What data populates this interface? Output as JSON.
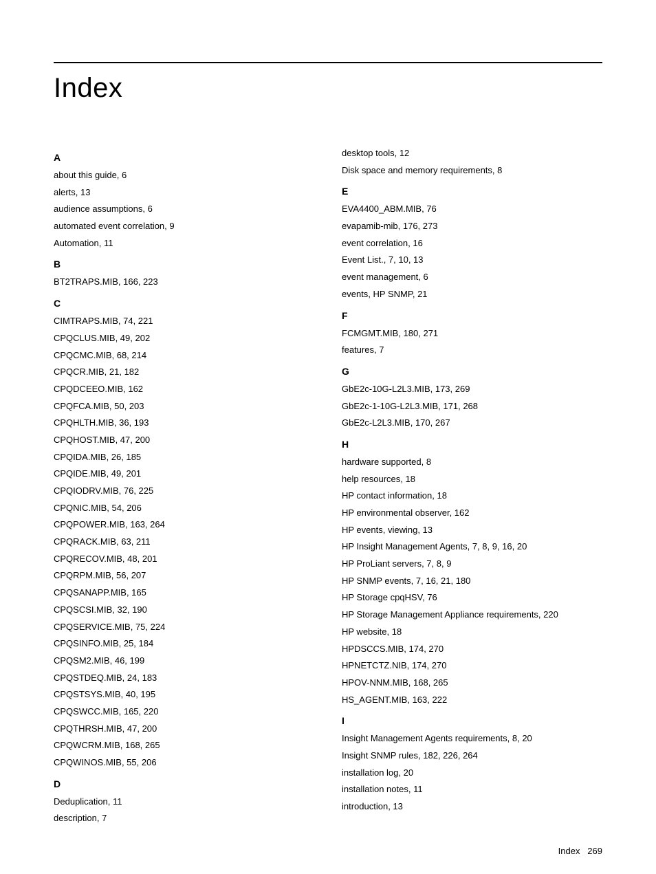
{
  "title": "Index",
  "footer": {
    "label": "Index",
    "page_number": "269"
  },
  "columns": [
    {
      "sections": [
        {
          "letter": "A",
          "entries": [
            "about this guide, 6",
            "alerts, 13",
            "audience assumptions, 6",
            "automated event correlation, 9",
            "Automation, 11"
          ]
        },
        {
          "letter": "B",
          "entries": [
            "BT2TRAPS.MIB, 166, 223"
          ]
        },
        {
          "letter": "C",
          "entries": [
            "CIMTRAPS.MIB, 74, 221",
            "CPQCLUS.MIB, 49, 202",
            "CPQCMC.MIB, 68, 214",
            "CPQCR.MIB, 21, 182",
            "CPQDCEEO.MIB, 162",
            "CPQFCA.MIB, 50, 203",
            "CPQHLTH.MIB, 36, 193",
            "CPQHOST.MIB, 47, 200",
            "CPQIDA.MIB, 26, 185",
            "CPQIDE.MIB, 49, 201",
            "CPQIODRV.MIB, 76, 225",
            "CPQNIC.MIB, 54, 206",
            "CPQPOWER.MIB, 163, 264",
            "CPQRACK.MIB, 63, 211",
            "CPQRECOV.MIB, 48, 201",
            "CPQRPM.MIB, 56, 207",
            "CPQSANAPP.MIB, 165",
            "CPQSCSI.MIB, 32, 190",
            "CPQSERVICE.MIB, 75, 224",
            "CPQSINFO.MIB, 25, 184",
            "CPQSM2.MIB, 46, 199",
            "CPQSTDEQ.MIB, 24, 183",
            "CPQSTSYS.MIB, 40, 195",
            "CPQSWCC.MIB, 165, 220",
            "CPQTHRSH.MIB, 47, 200",
            "CPQWCRM.MIB, 168, 265",
            "CPQWINOS.MIB, 55, 206"
          ]
        },
        {
          "letter": "D",
          "entries": [
            "Deduplication, 11",
            "description, 7"
          ]
        }
      ]
    },
    {
      "sections": [
        {
          "letter": "",
          "entries": [
            "desktop tools, 12",
            "Disk space and memory requirements, 8"
          ]
        },
        {
          "letter": "E",
          "entries": [
            "EVA4400_ABM.MIB, 76",
            "evapamib-mib, 176, 273",
            "event correlation, 16",
            "Event List., 7, 10, 13",
            "event management, 6",
            "events, HP SNMP, 21"
          ]
        },
        {
          "letter": "F",
          "entries": [
            "FCMGMT.MIB, 180, 271",
            "features, 7"
          ]
        },
        {
          "letter": "G",
          "entries": [
            "GbE2c-10G-L2L3.MIB, 173, 269",
            "GbE2c-1-10G-L2L3.MIB, 171, 268",
            "GbE2c-L2L3.MIB, 170, 267"
          ]
        },
        {
          "letter": "H",
          "entries": [
            "hardware supported, 8",
            "help resources, 18",
            "HP contact information, 18",
            "HP environmental observer, 162",
            "HP events, viewing, 13",
            "HP Insight Management Agents, 7, 8, 9, 16, 20",
            "HP ProLiant servers, 7, 8, 9",
            "HP SNMP events, 7, 16, 21, 180",
            "HP Storage cpqHSV, 76",
            "HP Storage Management Appliance requirements, 220",
            "HP website, 18",
            "HPDSCCS.MIB, 174, 270",
            "HPNETCTZ.NIB, 174, 270",
            "HPOV-NNM.MIB, 168, 265",
            "HS_AGENT.MIB, 163, 222"
          ]
        },
        {
          "letter": "I",
          "entries": [
            "Insight Management Agents requirements, 8, 20",
            "Insight SNMP rules, 182, 226, 264",
            "installation log, 20",
            "installation notes, 11",
            "introduction, 13"
          ]
        }
      ]
    }
  ]
}
